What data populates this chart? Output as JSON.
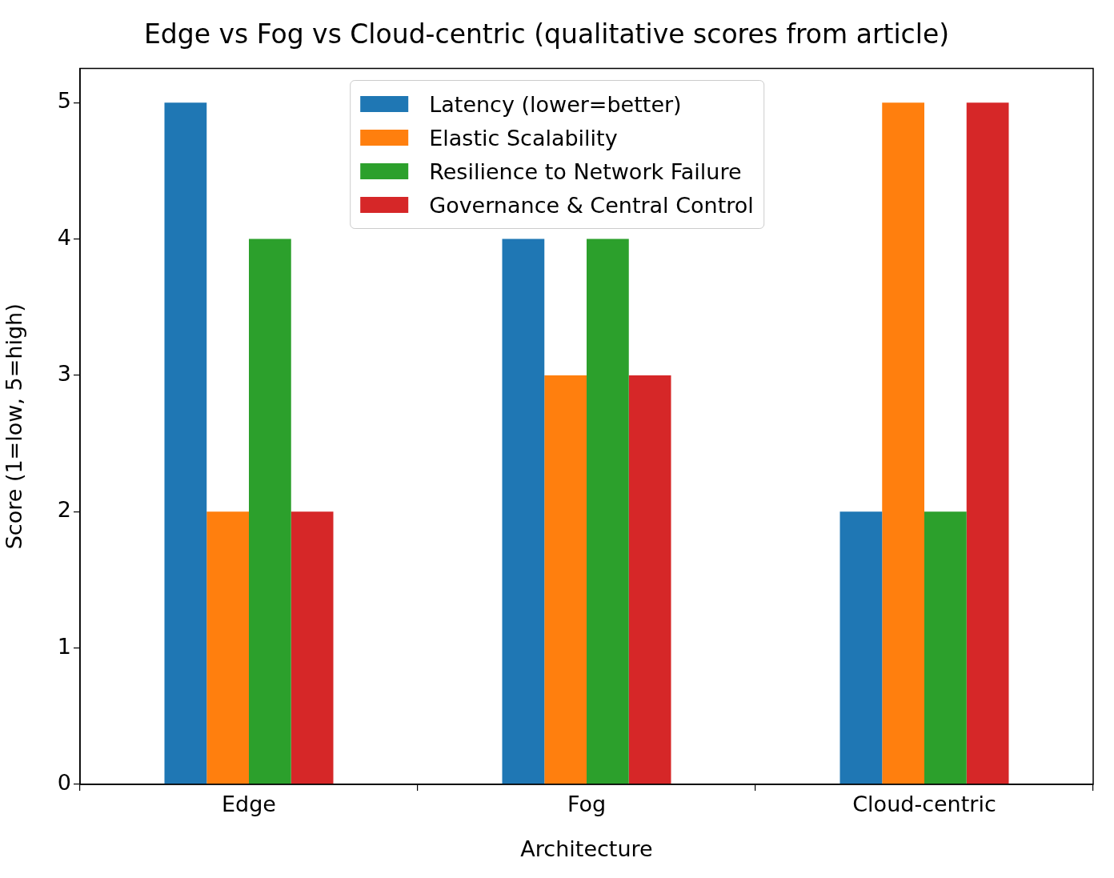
{
  "chart_data": {
    "type": "bar",
    "title": "Edge vs Fog vs Cloud-centric (qualitative scores from article)",
    "xlabel": "Architecture",
    "ylabel": "Score (1=low, 5=high)",
    "categories": [
      "Edge",
      "Fog",
      "Cloud-centric"
    ],
    "series": [
      {
        "name": "Latency (lower=better)",
        "color": "#1f77b4",
        "values": [
          5,
          4,
          2
        ]
      },
      {
        "name": "Elastic Scalability",
        "color": "#ff7f0e",
        "values": [
          2,
          3,
          5
        ]
      },
      {
        "name": "Resilience to Network Failure",
        "color": "#2ca02c",
        "values": [
          4,
          4,
          2
        ]
      },
      {
        "name": "Governance & Central Control",
        "color": "#d62728",
        "values": [
          2,
          3,
          5
        ]
      }
    ],
    "ylim": [
      0,
      5.25
    ],
    "yticks": [
      0,
      1,
      2,
      3,
      4,
      5
    ],
    "grid": false,
    "legend": "top"
  }
}
